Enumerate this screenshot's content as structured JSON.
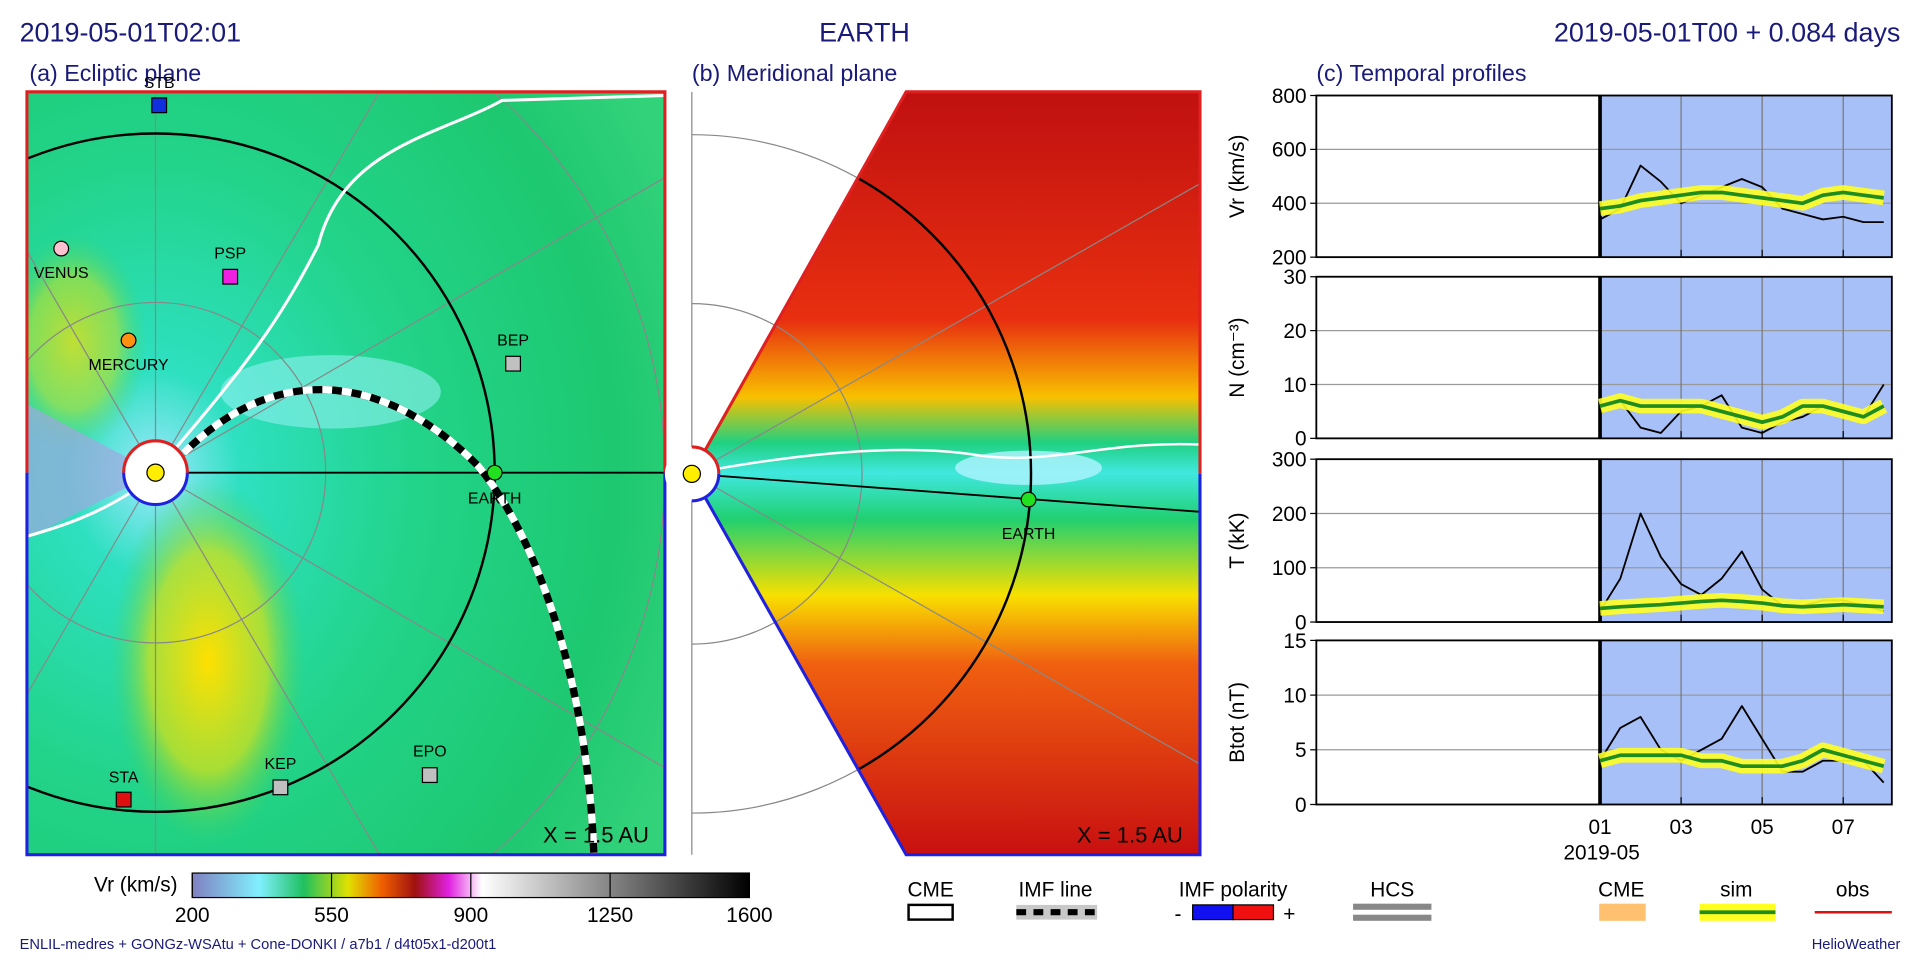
{
  "header": {
    "time": "2019-05-01T02:01",
    "target": "EARTH",
    "run_time": "2019-05-01T00 +  0.084 days"
  },
  "ecliptic": {
    "title": "(a) Ecliptic plane",
    "bodies": [
      "STB",
      "VENUS",
      "PSP",
      "MERCURY",
      "BEP",
      "EARTH",
      "STA",
      "KEP",
      "EPO"
    ],
    "note": "X = 1.5 AU"
  },
  "meridional": {
    "title": "(b) Meridional plane",
    "bodies": [
      "EARTH"
    ],
    "note": "X = 1.5 AU"
  },
  "profiles": {
    "title": "(c) Temporal profiles",
    "x_sublabel": "2019-05"
  },
  "colorbar": {
    "label": "Vr (km/s)",
    "lim": [
      200,
      1600
    ],
    "ticks": [
      200,
      550,
      900,
      1250,
      1600
    ]
  },
  "legend": {
    "cme": "CME",
    "imf_line": "IMF line",
    "imf_polarity": "IMF polarity",
    "minus": "-",
    "plus": "+",
    "hcs": "HCS",
    "cme_profile": "CME"
  },
  "footer": {
    "left": "ENLIL-medres + GONGz-WSAtu + Cone-DONKI / a7b1 / d4t05x1-d200t1",
    "right": "HelioWeather"
  },
  "chart_data": [
    {
      "type": "line",
      "ylabel": "Vr (km/s)",
      "x": [
        1,
        1.5,
        2,
        2.5,
        3,
        3.5,
        4,
        4.5,
        5,
        5.5,
        6,
        6.5,
        7,
        7.5,
        8
      ],
      "xlim": [
        -6,
        8.2
      ],
      "xticks": [
        {
          "value": 1,
          "label": "01"
        },
        {
          "value": 3,
          "label": "03"
        },
        {
          "value": 5,
          "label": "05"
        },
        {
          "value": 7,
          "label": "07"
        }
      ],
      "ylim": [
        200,
        800
      ],
      "yticks": [
        200,
        400,
        600,
        800
      ],
      "grid": true,
      "series": [
        {
          "name": "obs",
          "color": "#000000",
          "values": [
            340,
            380,
            540,
            480,
            400,
            430,
            460,
            490,
            460,
            380,
            360,
            340,
            350,
            330,
            330
          ]
        },
        {
          "name": "sim",
          "color": "#1e8c1e",
          "values": [
            380,
            390,
            410,
            420,
            430,
            440,
            440,
            430,
            420,
            410,
            400,
            430,
            440,
            430,
            420
          ]
        }
      ]
    },
    {
      "type": "line",
      "ylabel": "N (cm⁻³)",
      "x": [
        1,
        1.5,
        2,
        2.5,
        3,
        3.5,
        4,
        4.5,
        5,
        5.5,
        6,
        6.5,
        7,
        7.5,
        8
      ],
      "xlim": [
        -6,
        8.2
      ],
      "xticks": [
        {
          "value": 1,
          "label": "01"
        },
        {
          "value": 3,
          "label": "03"
        },
        {
          "value": 5,
          "label": "05"
        },
        {
          "value": 7,
          "label": "07"
        }
      ],
      "ylim": [
        0,
        30
      ],
      "yticks": [
        0,
        10,
        20,
        30
      ],
      "grid": true,
      "series": [
        {
          "name": "obs",
          "color": "#000000",
          "values": [
            6,
            7,
            2,
            1,
            5,
            6,
            8,
            2,
            1,
            3,
            4,
            6,
            5,
            4,
            10
          ]
        },
        {
          "name": "sim",
          "color": "#1e8c1e",
          "values": [
            6,
            7,
            6,
            6,
            6,
            6,
            5,
            4,
            3,
            4,
            6,
            6,
            5,
            4,
            6
          ]
        }
      ]
    },
    {
      "type": "line",
      "ylabel": "T (kK)",
      "x": [
        1,
        1.5,
        2,
        2.5,
        3,
        3.5,
        4,
        4.5,
        5,
        5.5,
        6,
        6.5,
        7,
        7.5,
        8
      ],
      "xlim": [
        -6,
        8.2
      ],
      "xticks": [
        {
          "value": 1,
          "label": "01"
        },
        {
          "value": 3,
          "label": "03"
        },
        {
          "value": 5,
          "label": "05"
        },
        {
          "value": 7,
          "label": "07"
        }
      ],
      "ylim": [
        0,
        300
      ],
      "yticks": [
        0,
        100,
        200,
        300
      ],
      "grid": true,
      "series": [
        {
          "name": "obs",
          "color": "#000000",
          "values": [
            20,
            80,
            200,
            120,
            70,
            50,
            80,
            130,
            60,
            30,
            30,
            40,
            40,
            30,
            20
          ]
        },
        {
          "name": "sim",
          "color": "#1e8c1e",
          "values": [
            25,
            28,
            30,
            32,
            35,
            38,
            40,
            38,
            35,
            30,
            28,
            30,
            32,
            30,
            28
          ]
        }
      ]
    },
    {
      "type": "line",
      "ylabel": "Btot (nT)",
      "x": [
        1,
        1.5,
        2,
        2.5,
        3,
        3.5,
        4,
        4.5,
        5,
        5.5,
        6,
        6.5,
        7,
        7.5,
        8
      ],
      "xlim": [
        -6,
        8.2
      ],
      "xticks": [
        {
          "value": 1,
          "label": "01"
        },
        {
          "value": 3,
          "label": "03"
        },
        {
          "value": 5,
          "label": "05"
        },
        {
          "value": 7,
          "label": "07"
        }
      ],
      "ylim": [
        0,
        15
      ],
      "yticks": [
        0,
        5,
        10,
        15
      ],
      "grid": true,
      "series": [
        {
          "name": "obs",
          "color": "#000000",
          "values": [
            4,
            7,
            8,
            5,
            4,
            5,
            6,
            9,
            6,
            3,
            3,
            4,
            4,
            4,
            2
          ]
        },
        {
          "name": "sim",
          "color": "#1e8c1e",
          "values": [
            4,
            4.5,
            4.5,
            4.5,
            4.5,
            4,
            4,
            3.5,
            3.5,
            3.5,
            4,
            5,
            4.5,
            4,
            3.5
          ]
        }
      ]
    }
  ]
}
